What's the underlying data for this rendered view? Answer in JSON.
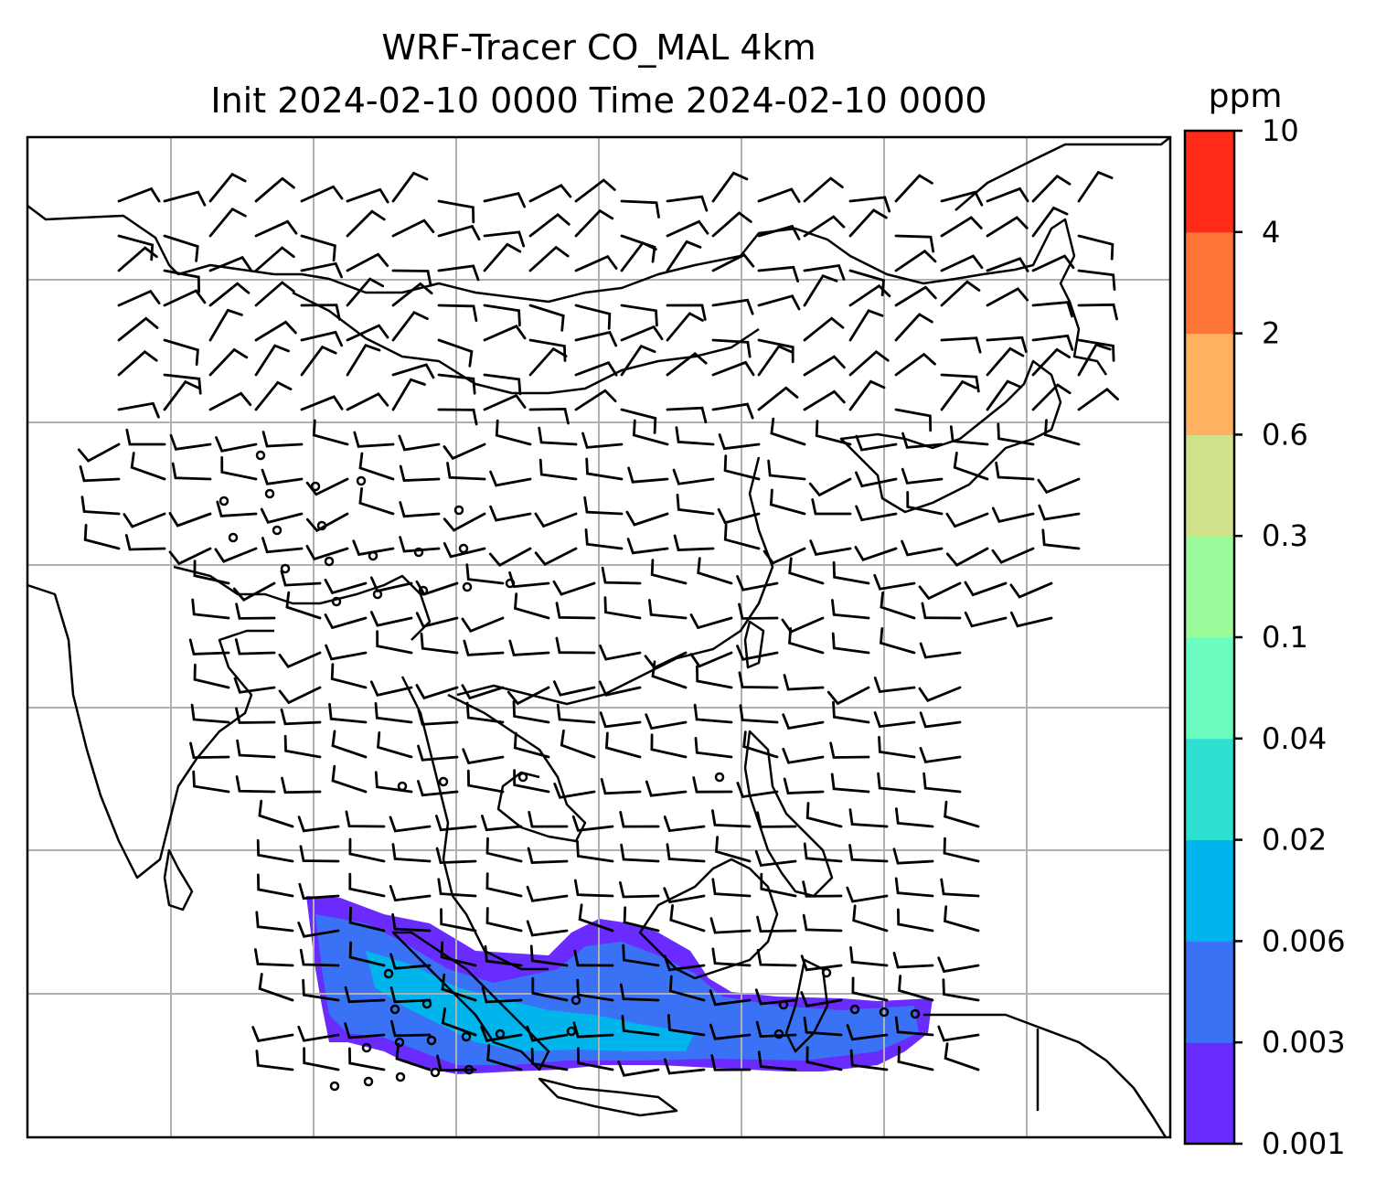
{
  "chart_data": {
    "type": "heatmap",
    "title": [
      "WRF-Tracer CO_MAL 4km",
      "Init 2024-02-10 0000 Time 2024-02-10 0000"
    ],
    "colorbar": {
      "label": "ppm",
      "levels": [
        0.001,
        0.003,
        0.006,
        0.02,
        0.04,
        0.1,
        0.3,
        0.6,
        2,
        4,
        10
      ],
      "tick_labels": [
        "0.001",
        "0.003",
        "0.006",
        "0.02",
        "0.04",
        "0.1",
        "0.3",
        "0.6",
        "2",
        "4",
        "10"
      ],
      "colors": [
        "#6a2bff",
        "#3a72f5",
        "#00b4ec",
        "#2de0d0",
        "#6cfcbf",
        "#99fb99",
        "#cfe28a",
        "#ffb060",
        "#ff7538",
        "#ff2a18"
      ]
    },
    "grid": true,
    "field_description": "CO_MAL tracer plume over Indonesia/Malaysia region, values mostly 0.001-0.02 ppm",
    "wind_barbs": true
  }
}
